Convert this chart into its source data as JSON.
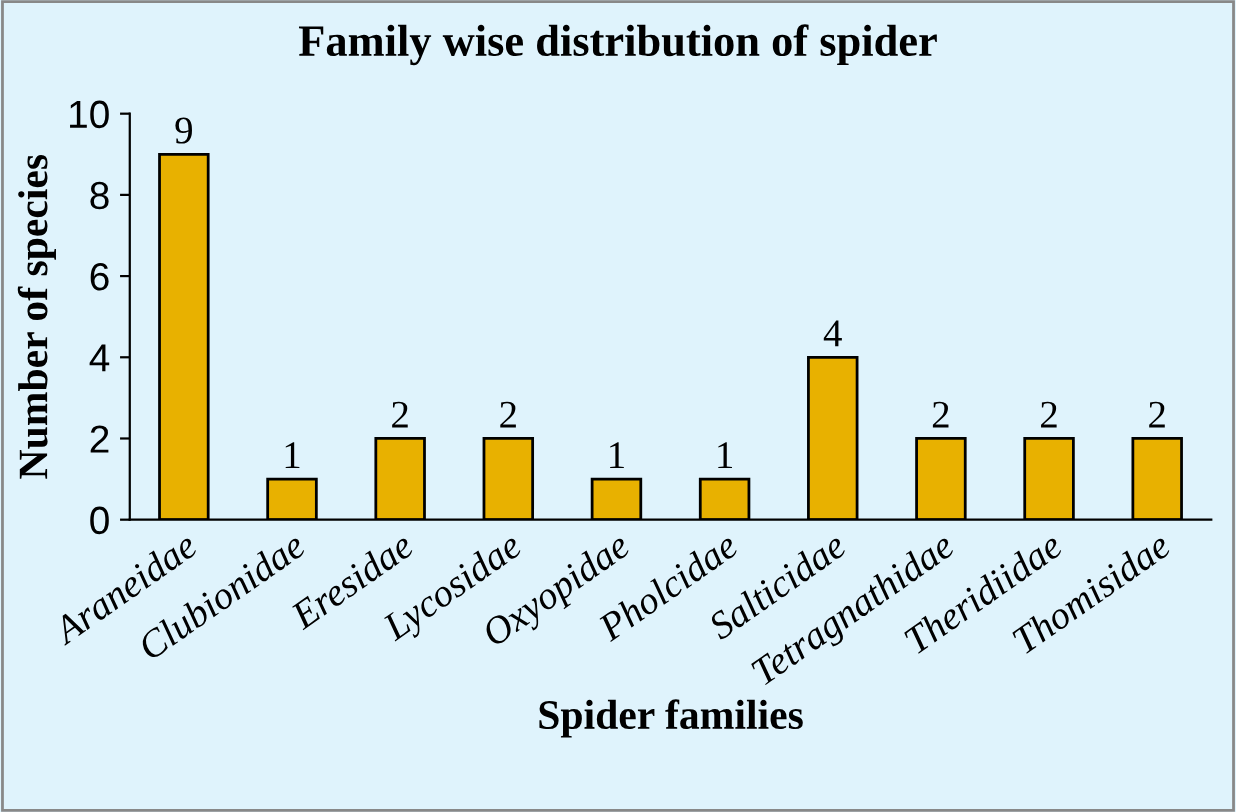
{
  "chart_data": {
    "type": "bar",
    "title": "Family wise distribution of spider",
    "xlabel": "Spider families",
    "ylabel": "Number of species",
    "categories": [
      "Araneidae",
      "Clubionidae",
      "Eresidae",
      "Lycosidae",
      "Oxyopidae",
      "Pholcidae",
      "Salticidae",
      "Tetragnathidae",
      "Theridiidae",
      "Thomisidae"
    ],
    "values": [
      9,
      1,
      2,
      2,
      1,
      1,
      4,
      2,
      2,
      2
    ],
    "color": "#e8b100",
    "ylim": [
      0,
      10
    ],
    "yticks": [
      0,
      2,
      4,
      6,
      8,
      10
    ],
    "grid": false,
    "legend": false,
    "data_labels": true
  }
}
